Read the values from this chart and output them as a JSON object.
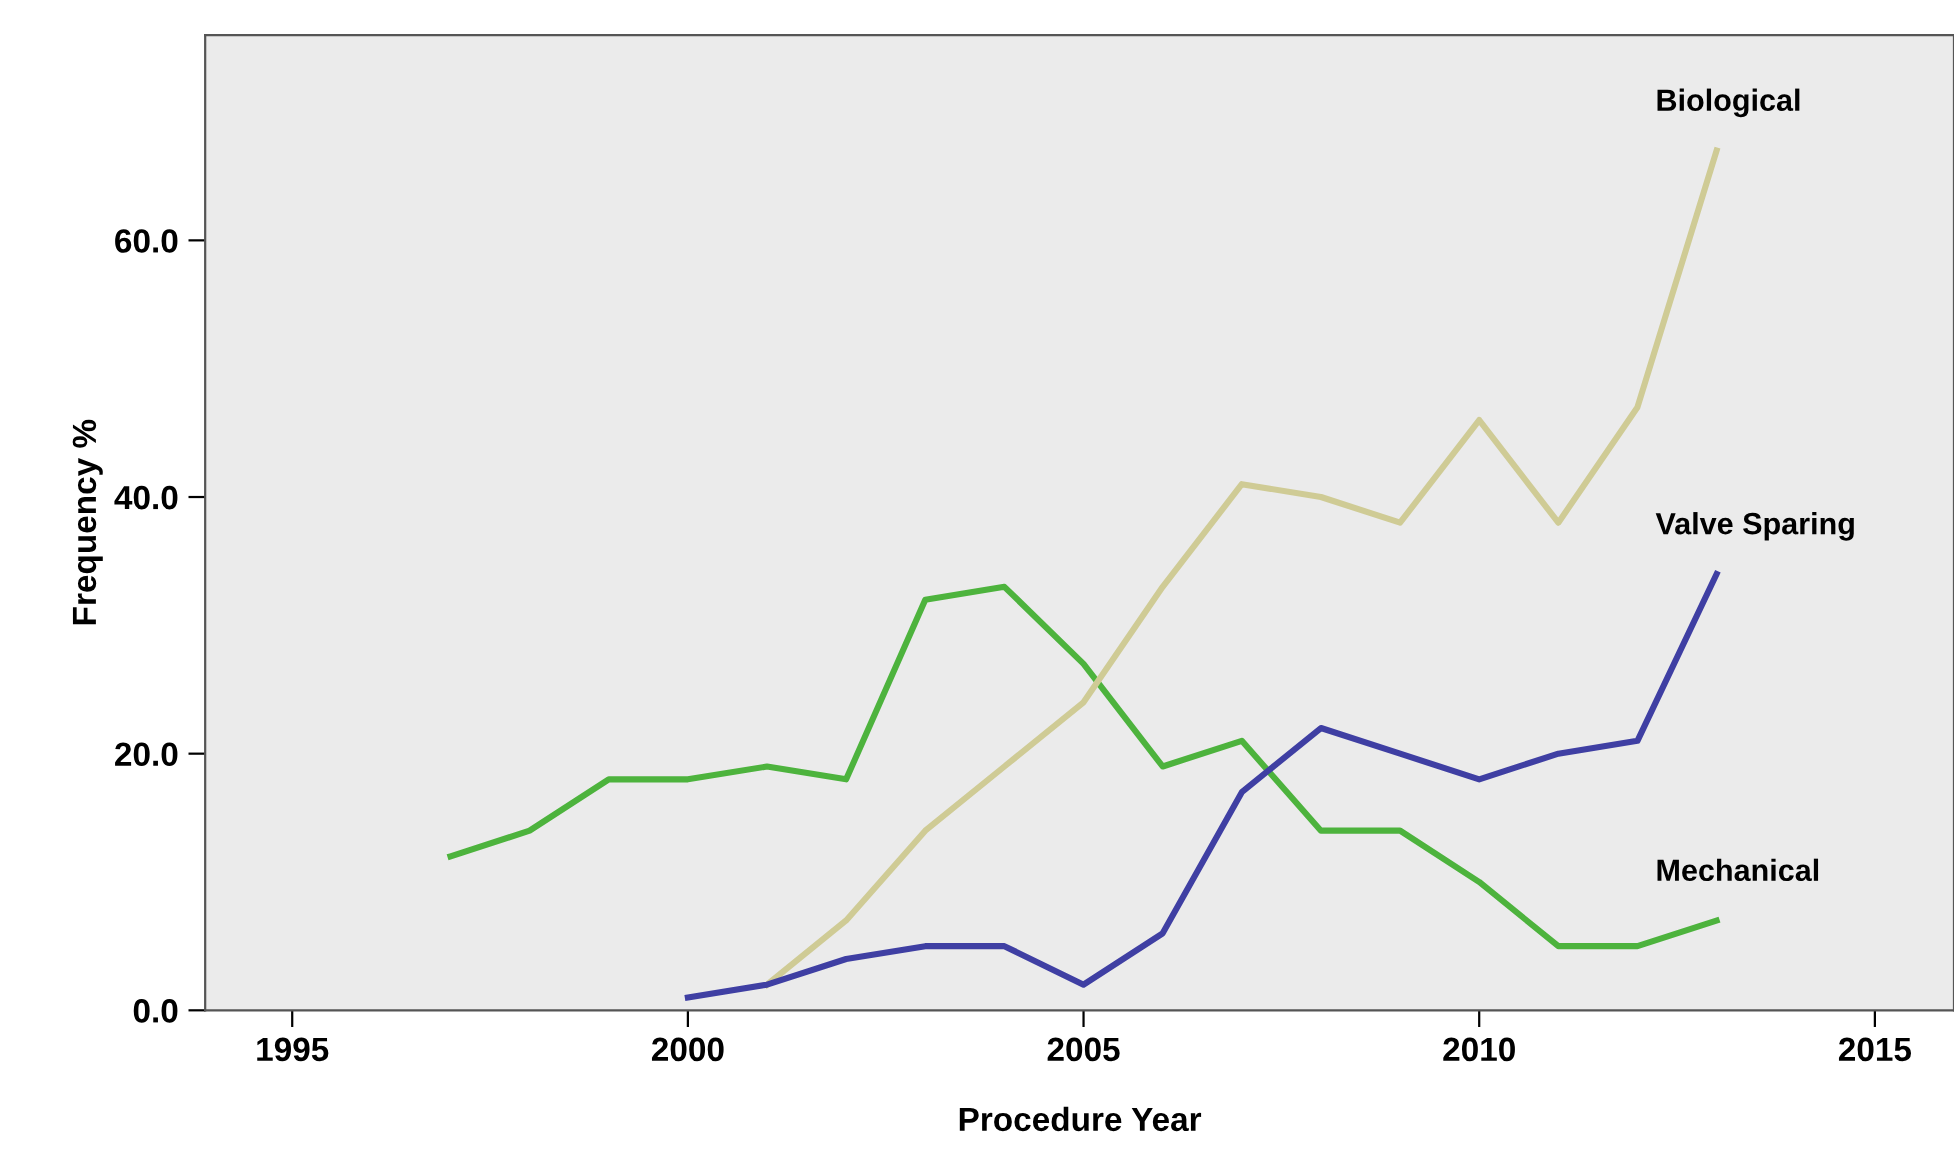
{
  "chart_data": {
    "type": "line",
    "xlabel": "Procedure Year",
    "ylabel": "Frequency %",
    "xlim": [
      1993.9,
      2016
    ],
    "xticks": [
      1995,
      2000,
      2005,
      2010,
      2015
    ],
    "ylim": [
      0,
      76
    ],
    "yticks": [
      {
        "value": 0,
        "label": "0.0"
      },
      {
        "value": 20,
        "label": "20.0"
      },
      {
        "value": 40,
        "label": "40.0"
      },
      {
        "value": 60,
        "label": "60.0"
      }
    ],
    "grid": false,
    "legend": false,
    "marker": "none",
    "line_style": "solid",
    "series": [
      {
        "name": "Mechanical",
        "color": "#4db33d",
        "x": [
          1997,
          1998,
          1999,
          2000,
          2001,
          2002,
          2003,
          2004,
          2005,
          2006,
          2007,
          2008,
          2009,
          2010,
          2011,
          2012,
          2013
        ],
        "values": [
          12,
          14,
          18,
          18,
          19,
          18,
          32,
          33,
          27,
          19,
          21,
          14,
          14,
          10,
          5,
          5,
          7
        ]
      },
      {
        "name": "Biological",
        "color": "#cfcb95",
        "x": [
          2001,
          2002,
          2003,
          2004,
          2005,
          2006,
          2007,
          2008,
          2009,
          2010,
          2011,
          2012,
          2013
        ],
        "values": [
          2,
          7,
          14,
          19,
          24,
          33,
          41,
          40,
          38,
          46,
          38,
          47,
          67
        ]
      },
      {
        "name": "Valve Sparing",
        "color": "#3f3fa3",
        "x": [
          2000,
          2001,
          2002,
          2003,
          2004,
          2005,
          2006,
          2007,
          2008,
          2009,
          2010,
          2011,
          2012,
          2013
        ],
        "values": [
          1,
          2,
          4,
          5,
          5,
          2,
          6,
          17,
          22,
          20,
          18,
          20,
          21,
          34
        ]
      }
    ]
  }
}
